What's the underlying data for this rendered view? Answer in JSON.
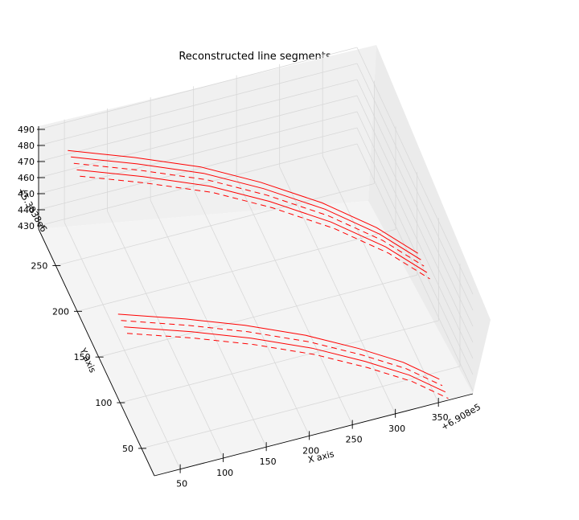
{
  "chart_data": {
    "type": "line",
    "projection": "3d",
    "title": "Reconstructed line segments",
    "xlabel": "X axis",
    "ylabel": "Y axis",
    "zlabel": "",
    "x_offset_text": "+6.908e5",
    "z_offset_text": "+5.3838e6",
    "x_ticks": [
      "50",
      "100",
      "150",
      "200",
      "250",
      "300",
      "350"
    ],
    "y_ticks": [
      "50",
      "100",
      "150",
      "200",
      "250"
    ],
    "z_ticks": [
      "430",
      "440",
      "450",
      "460",
      "470",
      "480",
      "490"
    ],
    "xlim": [
      20,
      390
    ],
    "ylim": [
      20,
      290
    ],
    "zlim": [
      428,
      492
    ],
    "grid": true,
    "series_color": "#ff0000",
    "series": [
      {
        "style": "solid",
        "points": [
          [
            40,
            262,
            490
          ],
          [
            110,
            248,
            484
          ],
          [
            180,
            233,
            477
          ],
          [
            240,
            214,
            470
          ],
          [
            300,
            191,
            462
          ],
          [
            350,
            164,
            455
          ],
          [
            385,
            138,
            449
          ]
        ]
      },
      {
        "style": "solid",
        "points": [
          [
            40,
            255,
            490
          ],
          [
            110,
            241,
            484
          ],
          [
            180,
            226,
            477
          ],
          [
            240,
            207,
            470
          ],
          [
            300,
            184,
            462
          ],
          [
            350,
            157,
            455
          ],
          [
            385,
            131,
            449
          ]
        ]
      },
      {
        "style": "dashed",
        "points": [
          [
            40,
            248,
            490
          ],
          [
            110,
            234,
            484
          ],
          [
            180,
            219,
            477
          ],
          [
            240,
            200,
            470
          ],
          [
            300,
            177,
            462
          ],
          [
            350,
            150,
            455
          ],
          [
            385,
            124,
            449
          ]
        ]
      },
      {
        "style": "solid",
        "points": [
          [
            40,
            241,
            490
          ],
          [
            110,
            227,
            484
          ],
          [
            180,
            212,
            477
          ],
          [
            240,
            193,
            470
          ],
          [
            300,
            170,
            462
          ],
          [
            350,
            143,
            455
          ],
          [
            385,
            117,
            449
          ]
        ]
      },
      {
        "style": "dashed",
        "points": [
          [
            40,
            234,
            490
          ],
          [
            110,
            220,
            484
          ],
          [
            180,
            205,
            477
          ],
          [
            240,
            186,
            470
          ],
          [
            300,
            163,
            462
          ],
          [
            350,
            136,
            455
          ],
          [
            385,
            110,
            449
          ]
        ]
      },
      {
        "style": "solid",
        "points": [
          [
            50,
            165,
            442
          ],
          [
            120,
            148,
            439
          ],
          [
            180,
            130,
            437
          ],
          [
            240,
            108,
            435
          ],
          [
            290,
            85,
            433
          ],
          [
            330,
            62,
            432
          ],
          [
            360,
            38,
            431
          ]
        ]
      },
      {
        "style": "dashed",
        "points": [
          [
            50,
            158,
            442
          ],
          [
            120,
            141,
            439
          ],
          [
            180,
            123,
            437
          ],
          [
            240,
            101,
            435
          ],
          [
            290,
            78,
            433
          ],
          [
            330,
            55,
            432
          ],
          [
            360,
            31,
            431
          ]
        ]
      },
      {
        "style": "solid",
        "points": [
          [
            50,
            151,
            442
          ],
          [
            120,
            134,
            439
          ],
          [
            180,
            116,
            437
          ],
          [
            240,
            94,
            435
          ],
          [
            290,
            71,
            433
          ],
          [
            330,
            48,
            432
          ],
          [
            360,
            24,
            431
          ]
        ]
      },
      {
        "style": "dashed",
        "points": [
          [
            50,
            144,
            442
          ],
          [
            120,
            127,
            439
          ],
          [
            180,
            109,
            437
          ],
          [
            240,
            87,
            435
          ],
          [
            290,
            64,
            433
          ],
          [
            330,
            41,
            432
          ],
          [
            360,
            17,
            431
          ]
        ]
      }
    ]
  }
}
